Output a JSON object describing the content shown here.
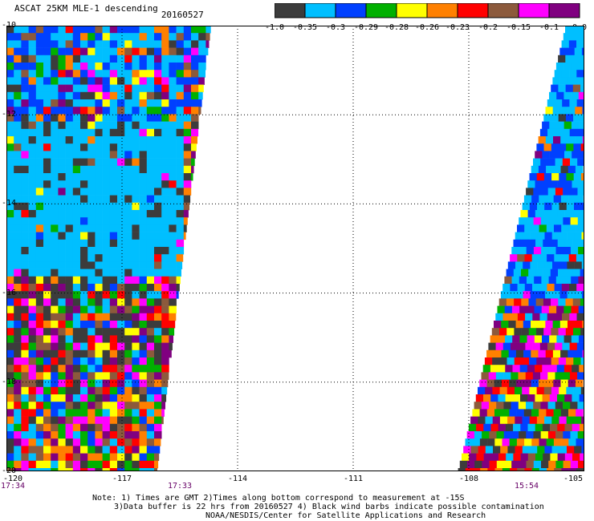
{
  "title": {
    "text": "ASCAT 25KM MLE-1 descending",
    "date": "20160527"
  },
  "colorbar": {
    "colors": [
      "#3c3c3c",
      "#00bfff",
      "#0040ff",
      "#00b000",
      "#ffff00",
      "#ff8000",
      "#ff0000",
      "#8c5a3c",
      "#ff00ff",
      "#800080"
    ],
    "labels": [
      "-1.0",
      "-0.35",
      "-0.3",
      "-0.29",
      "-0.28",
      "-0.26",
      "-0.23",
      "-0.2",
      "-0.15",
      "-0.1",
      "0.0"
    ]
  },
  "map": {
    "lon_range": [
      -120,
      -105
    ],
    "lat_range": [
      -20,
      -10
    ],
    "x_ticks": [
      "-120",
      "-117",
      "-114",
      "-111",
      "-108",
      "-105"
    ],
    "y_ticks": [
      "-10",
      "-12",
      "-14",
      "-16",
      "-18",
      "-20"
    ],
    "x_grid_lons": [
      -117,
      -114,
      -111,
      -108
    ],
    "y_grid_lats": [
      -12,
      -14,
      -16,
      -18
    ],
    "times": [
      {
        "lon": -120,
        "label": "17:34"
      },
      {
        "lon": -115.5,
        "label": "17:33"
      },
      {
        "lon": -106.5,
        "label": "15:54"
      }
    ],
    "swaths": [
      {
        "name": "west-swath",
        "top_lon": [
          -120,
          -114.7
        ],
        "bottom_lon": [
          -120,
          -116.1
        ]
      },
      {
        "name": "east-swath",
        "top_lon": [
          -105.5,
          -105
        ],
        "bottom_lon": [
          -108.3,
          -105
        ]
      }
    ],
    "low_region": {
      "lat_top": -12,
      "lat_bottom": -15.5,
      "lon_left": -120,
      "lon_right": -115.5
    }
  },
  "notes": [
    "Note: 1) Times are GMT 2)Times along bottom correspond to measurement at -15S",
    "3)Data buffer is 22 hrs from 20160527 4) Black wind barbs indicate possible contamination",
    "NOAA/NESDIS/Center for Satellite Applications and Research"
  ]
}
